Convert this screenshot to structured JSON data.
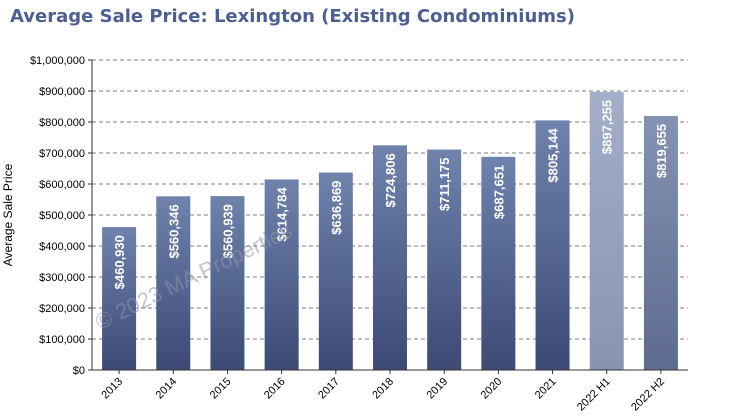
{
  "chart_data": {
    "type": "bar",
    "title": "Average Sale Price: Lexington (Existing Condominiums)",
    "ylabel": "Average Sale Price",
    "xlabel": "",
    "categories": [
      "2013",
      "2014",
      "2015",
      "2016",
      "2017",
      "2018",
      "2019",
      "2020",
      "2021",
      "2022 H1",
      "2022 H2"
    ],
    "values": [
      460930,
      560346,
      560939,
      614784,
      636869,
      724806,
      711175,
      687651,
      805144,
      897255,
      819655
    ],
    "value_labels": [
      "$460,930",
      "$560,346",
      "$560,939",
      "$614,784",
      "$636,869",
      "$724,806",
      "$711,175",
      "$687,651",
      "$805,144",
      "$897,255",
      "$819,655"
    ],
    "ylim": [
      0,
      1000000
    ],
    "yticks": [
      0,
      100000,
      200000,
      300000,
      400000,
      500000,
      600000,
      700000,
      800000,
      900000,
      1000000
    ],
    "ytick_labels": [
      "$0",
      "$100,000",
      "$200,000",
      "$300,000",
      "$400,000",
      "$500,000",
      "$600,000",
      "$700,000",
      "$800,000",
      "$900,000",
      "$1,000,000"
    ],
    "grid": true,
    "grid_style": "dashed",
    "colors": {
      "bar_top": "#6f83ad",
      "bar_bottom": "#3c4a74",
      "bar_light_top": "#a3afc9",
      "bar_light_bottom": "#8894b1",
      "bar_h2_top": "#8492b3",
      "bar_h2_bottom": "#5e6b8f",
      "title": "#4d5f8f"
    },
    "watermark": "© 2023 MA Properties"
  }
}
